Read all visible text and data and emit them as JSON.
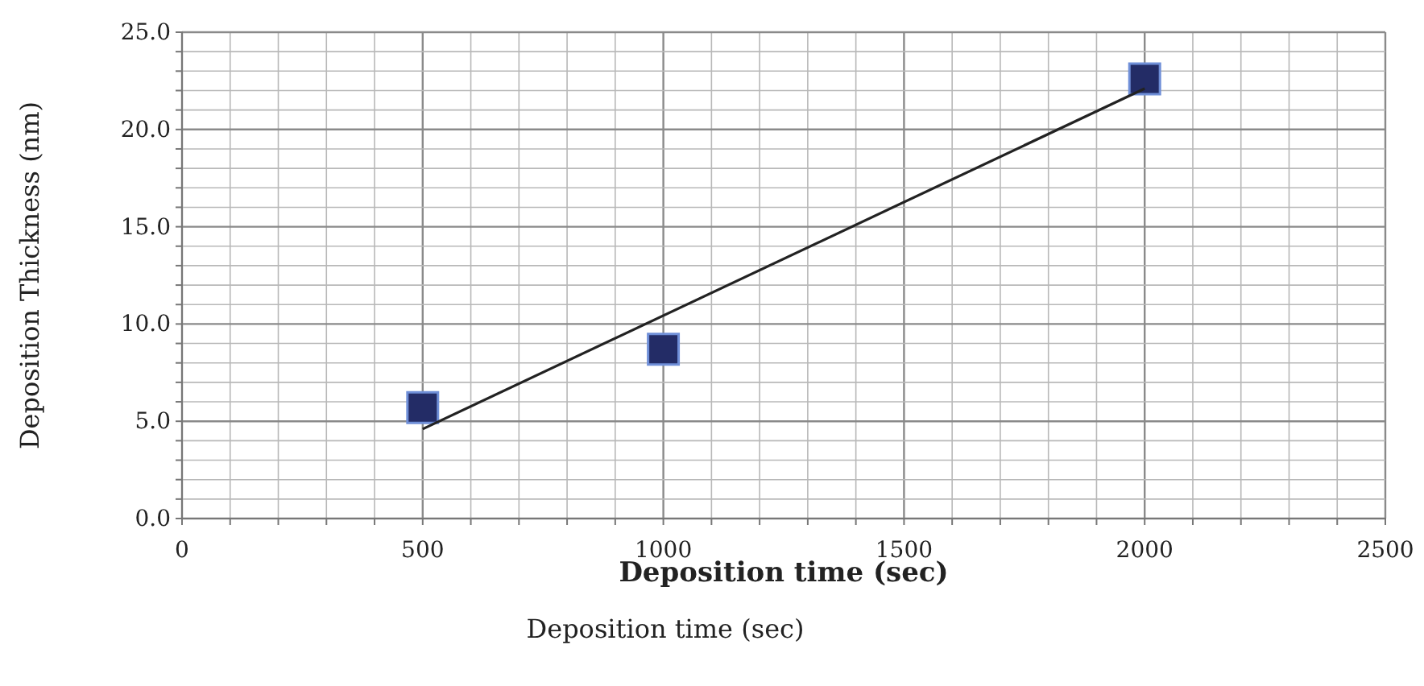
{
  "chart_data": {
    "type": "scatter",
    "xlabel": "Deposition time (sec)",
    "ylabel": "Deposition Thickness (nm)",
    "annotations": [
      "Deposition time (sec)"
    ],
    "xlim": [
      0,
      2500
    ],
    "xticks": [
      0,
      {
        "value": 100,
        "label": null
      },
      {
        "value": 200,
        "label": null
      },
      {
        "value": 300,
        "label": null
      },
      {
        "value": 400,
        "label": null
      },
      500,
      {
        "value": 600,
        "label": null
      },
      {
        "value": 700,
        "label": null
      },
      {
        "value": 800,
        "label": null
      },
      {
        "value": 900,
        "label": null
      },
      1000,
      {
        "value": 1100,
        "label": null
      },
      {
        "value": 1200,
        "label": null
      },
      {
        "value": 1300,
        "label": null
      },
      {
        "value": 1400,
        "label": null
      },
      1500,
      {
        "value": 1600,
        "label": null
      },
      {
        "value": 1700,
        "label": null
      },
      {
        "value": 1800,
        "label": null
      },
      {
        "value": 1900,
        "label": null
      },
      2000,
      {
        "value": 2100,
        "label": null
      },
      {
        "value": 2200,
        "label": null
      },
      {
        "value": 2300,
        "label": null
      },
      {
        "value": 2400,
        "label": null
      },
      2500
    ],
    "ylim": [
      0,
      25
    ],
    "yticks": [
      {
        "value": 0,
        "label": "0.0"
      },
      {
        "value": 1,
        "label": null
      },
      {
        "value": 2,
        "label": null
      },
      {
        "value": 3,
        "label": null
      },
      {
        "value": 4,
        "label": null
      },
      {
        "value": 5,
        "label": "5.0"
      },
      {
        "value": 6,
        "label": null
      },
      {
        "value": 7,
        "label": null
      },
      {
        "value": 8,
        "label": null
      },
      {
        "value": 9,
        "label": null
      },
      {
        "value": 10,
        "label": "10.0"
      },
      {
        "value": 11,
        "label": null
      },
      {
        "value": 12,
        "label": null
      },
      {
        "value": 13,
        "label": null
      },
      {
        "value": 14,
        "label": null
      },
      {
        "value": 15,
        "label": "15.0"
      },
      {
        "value": 16,
        "label": null
      },
      {
        "value": 17,
        "label": null
      },
      {
        "value": 18,
        "label": null
      },
      {
        "value": 19,
        "label": null
      },
      {
        "value": 20,
        "label": "20.0"
      },
      {
        "value": 21,
        "label": null
      },
      {
        "value": 22,
        "label": null
      },
      {
        "value": 23,
        "label": null
      },
      {
        "value": 24,
        "label": null
      },
      {
        "value": 25,
        "label": "25.0"
      }
    ],
    "grid": true,
    "series": [
      {
        "color": "#232c66",
        "marker": "square",
        "x": [
          500,
          1000,
          2000
        ],
        "values": [
          5.7,
          8.7,
          22.6
        ]
      },
      {
        "type": "line",
        "color": "#222222",
        "marker": "none",
        "x": [
          500,
          2000
        ],
        "values": [
          4.6,
          22.1
        ]
      }
    ]
  }
}
